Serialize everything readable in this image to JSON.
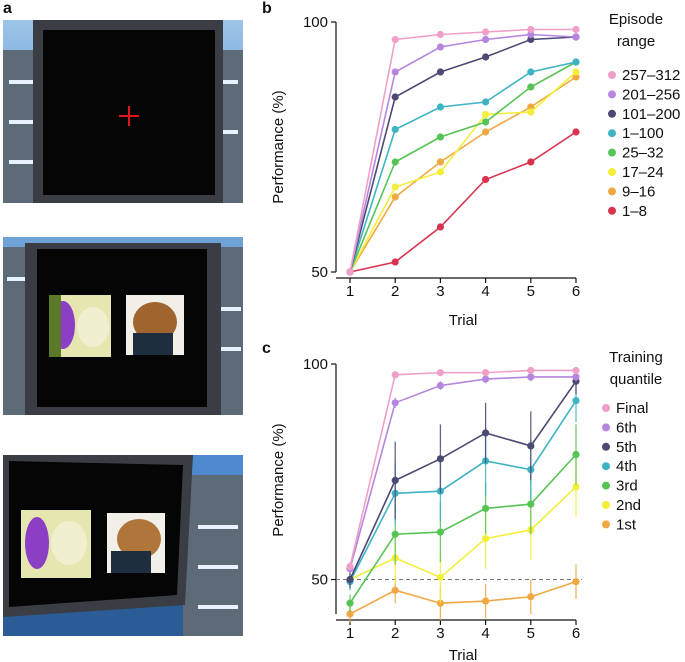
{
  "panels": {
    "a": {
      "letter": "a"
    },
    "b": {
      "letter": "b"
    },
    "c": {
      "letter": "c"
    }
  },
  "chart_data": [
    {
      "type": "line",
      "panel": "b",
      "xlabel": "Trial",
      "ylabel": "Performance (%)",
      "x": [
        1,
        2,
        3,
        4,
        5,
        6
      ],
      "ylim": [
        50,
        100
      ],
      "yticks": [
        50,
        100
      ],
      "legend_title": [
        "Episode",
        "range"
      ],
      "legend_position": "right",
      "series": [
        {
          "name": "257–312",
          "color": "#f0a0c8",
          "values": [
            50,
            96.5,
            97.5,
            98,
            98.5,
            98.5
          ]
        },
        {
          "name": "201–256",
          "color": "#b685e0",
          "values": [
            50,
            90,
            95,
            96.5,
            97.5,
            97
          ]
        },
        {
          "name": "101–200",
          "color": "#4c4a72",
          "values": [
            50,
            85,
            90,
            93,
            96.5,
            97
          ]
        },
        {
          "name": "1–100",
          "color": "#3eb3c4",
          "values": [
            50,
            78.5,
            83,
            84,
            90,
            92
          ]
        },
        {
          "name": "25–32",
          "color": "#56c455",
          "values": [
            50,
            72,
            77,
            80,
            87,
            92
          ]
        },
        {
          "name": "17–24",
          "color": "#f2ee3a",
          "values": [
            50,
            67,
            70,
            81.5,
            82,
            90
          ]
        },
        {
          "name": "9–16",
          "color": "#f0a842",
          "values": [
            50,
            65,
            72,
            78,
            83,
            89
          ]
        },
        {
          "name": "1–8",
          "color": "#d9334f",
          "values": [
            50,
            52,
            59,
            68.5,
            72,
            78
          ]
        }
      ]
    },
    {
      "type": "line",
      "panel": "c",
      "xlabel": "Trial",
      "ylabel": "Performance (%)",
      "x": [
        1,
        2,
        3,
        4,
        5,
        6
      ],
      "ylim": [
        42,
        100
      ],
      "yticks": [
        50,
        100
      ],
      "chance_line": 50,
      "legend_title": [
        "Training",
        "quantile"
      ],
      "legend_position": "right",
      "series": [
        {
          "name": "Final",
          "color": "#f0a0c8",
          "values": [
            53,
            97.5,
            98,
            98,
            98.5,
            98.5
          ],
          "err": [
            1,
            0.8,
            0.8,
            0.8,
            0.8,
            0.8
          ]
        },
        {
          "name": "6th",
          "color": "#b685e0",
          "values": [
            52.5,
            91,
            95,
            96.5,
            97,
            97
          ],
          "err": [
            1.2,
            1.2,
            1,
            1,
            1,
            1
          ]
        },
        {
          "name": "5th",
          "color": "#4c4a72",
          "values": [
            50,
            73,
            78,
            84,
            81,
            96
          ],
          "err": [
            2,
            9,
            8,
            7,
            8,
            3
          ]
        },
        {
          "name": "4th",
          "color": "#3eb3c4",
          "values": [
            49.5,
            70,
            70.5,
            77.5,
            75.5,
            91.5
          ],
          "err": [
            2,
            7,
            7,
            8,
            7,
            5
          ]
        },
        {
          "name": "3rd",
          "color": "#56c455",
          "values": [
            44.5,
            60.5,
            61,
            66.5,
            67.5,
            79
          ],
          "err": [
            2,
            7,
            7,
            6,
            7,
            7
          ]
        },
        {
          "name": "2nd",
          "color": "#f2ee3a",
          "values": [
            50,
            55,
            50.5,
            59.5,
            61.5,
            71.5
          ],
          "err": [
            2,
            6,
            6,
            7,
            7,
            7
          ]
        },
        {
          "name": "1st",
          "color": "#f0a842",
          "values": [
            42,
            47.5,
            44.5,
            45,
            46,
            49.5
          ],
          "err": [
            2,
            3,
            4,
            4,
            4,
            4
          ]
        }
      ]
    }
  ]
}
